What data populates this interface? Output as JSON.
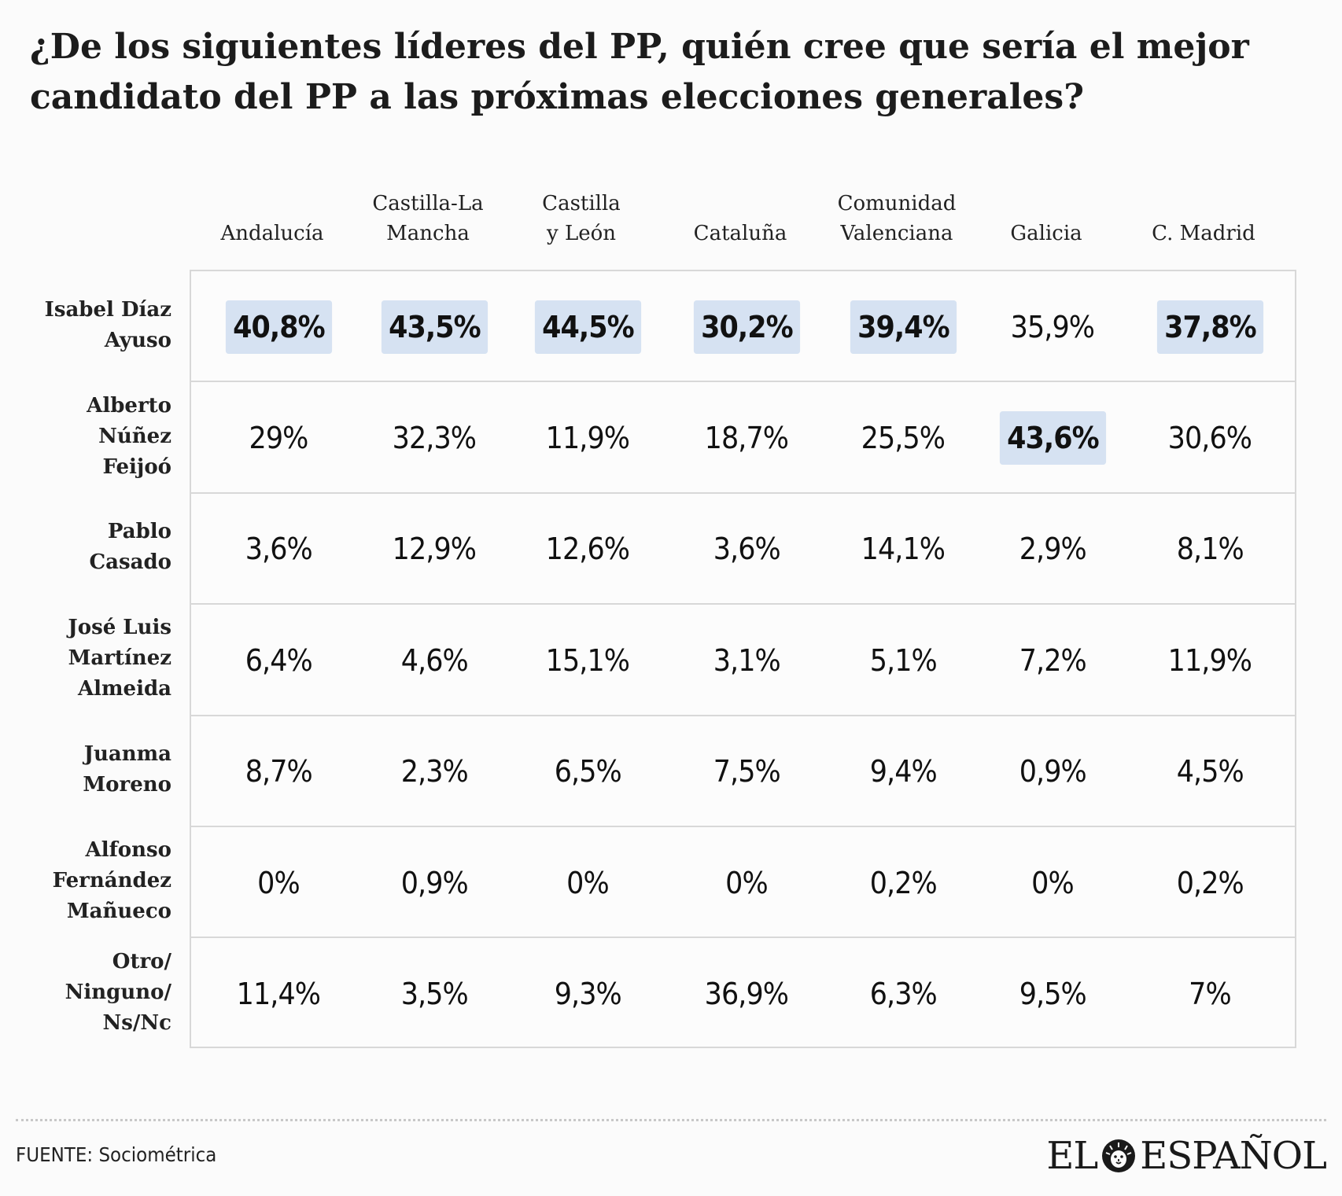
{
  "title": "¿De los siguientes líderes del PP, quién cree que sería el mejor candidato del PP a las próximas elecciones generales?",
  "chart_data": {
    "type": "table",
    "title": "¿De los siguientes líderes del PP, quién cree que sería el mejor candidato del PP a las próximas elecciones generales?",
    "columns": [
      "Andalucía",
      "Castilla-La\nMancha",
      "Castilla\ny León",
      "Cataluña",
      "Comunidad\nValenciana",
      "Galicia",
      "C. Madrid"
    ],
    "rows": [
      {
        "label": "Isabel Díaz\nAyuso",
        "values": [
          "40,8%",
          "43,5%",
          "44,5%",
          "30,2%",
          "39,4%",
          "35,9%",
          "37,8%"
        ],
        "highlight": [
          true,
          true,
          true,
          true,
          true,
          false,
          true
        ]
      },
      {
        "label": "Alberto\nNúñez\nFeijoó",
        "values": [
          "29%",
          "32,3%",
          "11,9%",
          "18,7%",
          "25,5%",
          "43,6%",
          "30,6%"
        ],
        "highlight": [
          false,
          false,
          false,
          false,
          false,
          true,
          false
        ]
      },
      {
        "label": "Pablo\nCasado",
        "values": [
          "3,6%",
          "12,9%",
          "12,6%",
          "3,6%",
          "14,1%",
          "2,9%",
          "8,1%"
        ],
        "highlight": [
          false,
          false,
          false,
          false,
          false,
          false,
          false
        ]
      },
      {
        "label": "José Luis\nMartínez\nAlmeida",
        "values": [
          "6,4%",
          "4,6%",
          "15,1%",
          "3,1%",
          "5,1%",
          "7,2%",
          "11,9%"
        ],
        "highlight": [
          false,
          false,
          false,
          false,
          false,
          false,
          false
        ]
      },
      {
        "label": "Juanma\nMoreno",
        "values": [
          "8,7%",
          "2,3%",
          "6,5%",
          "7,5%",
          "9,4%",
          "0,9%",
          "4,5%"
        ],
        "highlight": [
          false,
          false,
          false,
          false,
          false,
          false,
          false
        ]
      },
      {
        "label": "Alfonso\nFernández\nMañueco",
        "values": [
          "0%",
          "0,9%",
          "0%",
          "0%",
          "0,2%",
          "0%",
          "0,2%"
        ],
        "highlight": [
          false,
          false,
          false,
          false,
          false,
          false,
          false
        ]
      },
      {
        "label": "Otro/\nNinguno/\nNs/Nc",
        "values": [
          "11,4%",
          "3,5%",
          "9,3%",
          "36,9%",
          "6,3%",
          "9,5%",
          "7%"
        ],
        "highlight": [
          false,
          false,
          false,
          false,
          false,
          false,
          false
        ]
      }
    ],
    "highlight_color": "#d6e2f2"
  },
  "footer": {
    "source": "FUENTE: Sociométrica",
    "logo_left": "EL",
    "logo_right": "ESPAÑOL",
    "logo_icon": "lion-head-icon"
  }
}
